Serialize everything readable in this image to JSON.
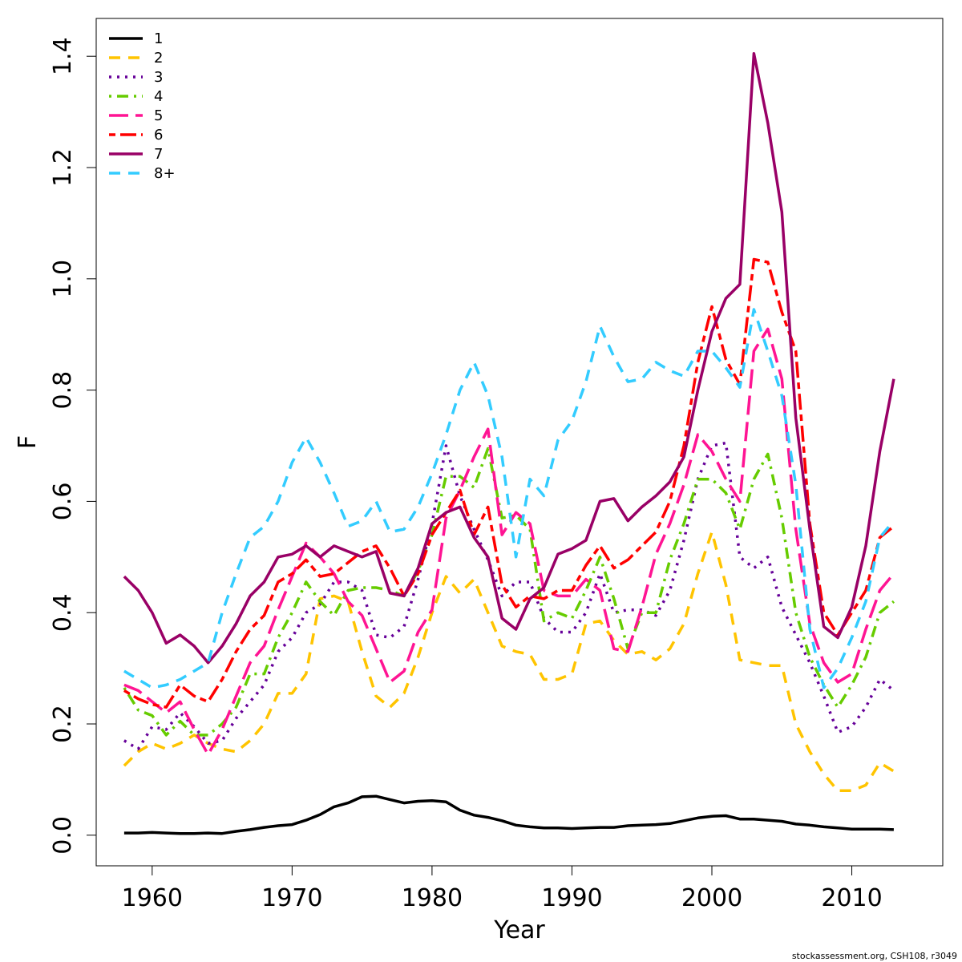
{
  "chart_data": {
    "type": "line",
    "xlabel": "Year",
    "ylabel": "F",
    "xlim": [
      1956,
      2016.5
    ],
    "ylim": [
      -0.055,
      1.468
    ],
    "x_ticks": [
      1960,
      1970,
      1980,
      1990,
      2000,
      2010
    ],
    "y_ticks": [
      0.0,
      0.2,
      0.4,
      0.6,
      0.8,
      1.0,
      1.2,
      1.4
    ],
    "y_tick_labels": [
      "0.0",
      "0.2",
      "0.4",
      "0.6",
      "0.8",
      "1.0",
      "1.2",
      "1.4"
    ],
    "grid": false,
    "legend_position": "top-left",
    "credit": "stockassessment.org, CSH108, r3049",
    "x": [
      1958,
      1959,
      1960,
      1961,
      1962,
      1963,
      1964,
      1965,
      1966,
      1967,
      1968,
      1969,
      1970,
      1971,
      1972,
      1973,
      1974,
      1975,
      1976,
      1977,
      1978,
      1979,
      1980,
      1981,
      1982,
      1983,
      1984,
      1985,
      1986,
      1987,
      1988,
      1989,
      1990,
      1991,
      1992,
      1993,
      1994,
      1995,
      1996,
      1997,
      1998,
      1999,
      2000,
      2001,
      2002,
      2003,
      2004,
      2005,
      2006,
      2007,
      2008,
      2009,
      2010,
      2011,
      2012,
      2013
    ],
    "series": [
      {
        "name": "1",
        "color": "#000000",
        "dash": "solid",
        "values": [
          0.004,
          0.004,
          0.005,
          0.004,
          0.003,
          0.003,
          0.004,
          0.003,
          0.007,
          0.01,
          0.014,
          0.017,
          0.019,
          0.027,
          0.037,
          0.051,
          0.058,
          0.069,
          0.07,
          0.064,
          0.058,
          0.061,
          0.062,
          0.06,
          0.045,
          0.036,
          0.032,
          0.026,
          0.018,
          0.015,
          0.013,
          0.013,
          0.012,
          0.013,
          0.014,
          0.014,
          0.017,
          0.018,
          0.019,
          0.021,
          0.026,
          0.031,
          0.034,
          0.035,
          0.029,
          0.029,
          0.027,
          0.025,
          0.02,
          0.018,
          0.015,
          0.013,
          0.011,
          0.011,
          0.011,
          0.01
        ]
      },
      {
        "name": "2",
        "color": "#FFC400",
        "dash": "dash",
        "values": [
          0.125,
          0.15,
          0.165,
          0.155,
          0.165,
          0.18,
          0.165,
          0.155,
          0.15,
          0.17,
          0.2,
          0.255,
          0.255,
          0.29,
          0.425,
          0.43,
          0.42,
          0.33,
          0.25,
          0.23,
          0.255,
          0.32,
          0.4,
          0.465,
          0.435,
          0.46,
          0.4,
          0.34,
          0.33,
          0.325,
          0.28,
          0.28,
          0.29,
          0.38,
          0.385,
          0.35,
          0.325,
          0.33,
          0.315,
          0.335,
          0.38,
          0.47,
          0.545,
          0.45,
          0.315,
          0.31,
          0.305,
          0.305,
          0.2,
          0.15,
          0.11,
          0.08,
          0.08,
          0.09,
          0.13,
          0.115
        ]
      },
      {
        "name": "3",
        "color": "#660099",
        "dash": "dot",
        "values": [
          0.17,
          0.155,
          0.195,
          0.19,
          0.22,
          0.195,
          0.165,
          0.17,
          0.21,
          0.24,
          0.27,
          0.33,
          0.355,
          0.4,
          0.415,
          0.455,
          0.455,
          0.44,
          0.36,
          0.355,
          0.375,
          0.46,
          0.56,
          0.7,
          0.61,
          0.55,
          0.495,
          0.43,
          0.455,
          0.455,
          0.39,
          0.365,
          0.365,
          0.4,
          0.47,
          0.4,
          0.405,
          0.405,
          0.395,
          0.44,
          0.53,
          0.64,
          0.7,
          0.705,
          0.5,
          0.48,
          0.5,
          0.41,
          0.36,
          0.31,
          0.25,
          0.185,
          0.195,
          0.23,
          0.28,
          0.26
        ]
      },
      {
        "name": "4",
        "color": "#66CC00",
        "dash": "dotdash",
        "values": [
          0.265,
          0.225,
          0.215,
          0.18,
          0.205,
          0.18,
          0.18,
          0.2,
          0.23,
          0.29,
          0.29,
          0.355,
          0.4,
          0.455,
          0.42,
          0.395,
          0.44,
          0.445,
          0.445,
          0.44,
          0.43,
          0.475,
          0.54,
          0.645,
          0.645,
          0.625,
          0.695,
          0.57,
          0.575,
          0.55,
          0.385,
          0.4,
          0.39,
          0.44,
          0.5,
          0.425,
          0.335,
          0.4,
          0.4,
          0.495,
          0.56,
          0.64,
          0.64,
          0.615,
          0.55,
          0.64,
          0.685,
          0.57,
          0.4,
          0.32,
          0.27,
          0.23,
          0.27,
          0.32,
          0.4,
          0.42
        ]
      },
      {
        "name": "5",
        "color": "#FF1493",
        "dash": "longdash",
        "values": [
          0.27,
          0.26,
          0.24,
          0.22,
          0.24,
          0.19,
          0.145,
          0.19,
          0.25,
          0.31,
          0.34,
          0.405,
          0.465,
          0.525,
          0.5,
          0.47,
          0.42,
          0.395,
          0.335,
          0.275,
          0.295,
          0.365,
          0.405,
          0.57,
          0.62,
          0.68,
          0.73,
          0.54,
          0.58,
          0.56,
          0.44,
          0.43,
          0.43,
          0.46,
          0.44,
          0.335,
          0.33,
          0.41,
          0.505,
          0.56,
          0.63,
          0.72,
          0.69,
          0.64,
          0.6,
          0.87,
          0.91,
          0.82,
          0.55,
          0.38,
          0.31,
          0.275,
          0.29,
          0.37,
          0.44,
          0.47
        ]
      },
      {
        "name": "6",
        "color": "#FF0000",
        "dash": "twodash",
        "values": [
          0.26,
          0.245,
          0.235,
          0.23,
          0.27,
          0.25,
          0.24,
          0.28,
          0.33,
          0.37,
          0.395,
          0.455,
          0.47,
          0.495,
          0.465,
          0.47,
          0.49,
          0.51,
          0.52,
          0.48,
          0.43,
          0.47,
          0.54,
          0.58,
          0.62,
          0.54,
          0.59,
          0.45,
          0.41,
          0.43,
          0.425,
          0.44,
          0.44,
          0.485,
          0.52,
          0.48,
          0.495,
          0.52,
          0.545,
          0.6,
          0.7,
          0.85,
          0.95,
          0.855,
          0.81,
          1.035,
          1.03,
          0.94,
          0.87,
          0.56,
          0.4,
          0.36,
          0.4,
          0.44,
          0.535,
          0.555
        ]
      },
      {
        "name": "7",
        "color": "#990066",
        "dash": "solid",
        "values": [
          0.465,
          0.44,
          0.4,
          0.345,
          0.36,
          0.34,
          0.31,
          0.34,
          0.38,
          0.43,
          0.455,
          0.5,
          0.505,
          0.52,
          0.5,
          0.52,
          0.51,
          0.5,
          0.51,
          0.435,
          0.43,
          0.48,
          0.56,
          0.58,
          0.59,
          0.535,
          0.5,
          0.39,
          0.37,
          0.425,
          0.445,
          0.505,
          0.515,
          0.53,
          0.6,
          0.605,
          0.565,
          0.59,
          0.61,
          0.635,
          0.68,
          0.8,
          0.905,
          0.965,
          0.99,
          1.405,
          1.28,
          1.12,
          0.75,
          0.55,
          0.375,
          0.355,
          0.41,
          0.52,
          0.69,
          0.82
        ]
      },
      {
        "name": "8+",
        "color": "#33CCFF",
        "dash": "dash",
        "values": [
          0.295,
          0.28,
          0.265,
          0.27,
          0.28,
          0.295,
          0.31,
          0.4,
          0.47,
          0.535,
          0.555,
          0.6,
          0.67,
          0.715,
          0.67,
          0.615,
          0.555,
          0.565,
          0.6,
          0.545,
          0.55,
          0.59,
          0.65,
          0.72,
          0.8,
          0.85,
          0.79,
          0.68,
          0.5,
          0.64,
          0.61,
          0.71,
          0.745,
          0.815,
          0.915,
          0.86,
          0.815,
          0.82,
          0.85,
          0.835,
          0.825,
          0.87,
          0.87,
          0.84,
          0.805,
          0.945,
          0.87,
          0.79,
          0.63,
          0.37,
          0.265,
          0.3,
          0.355,
          0.42,
          0.535,
          0.565
        ]
      }
    ]
  }
}
